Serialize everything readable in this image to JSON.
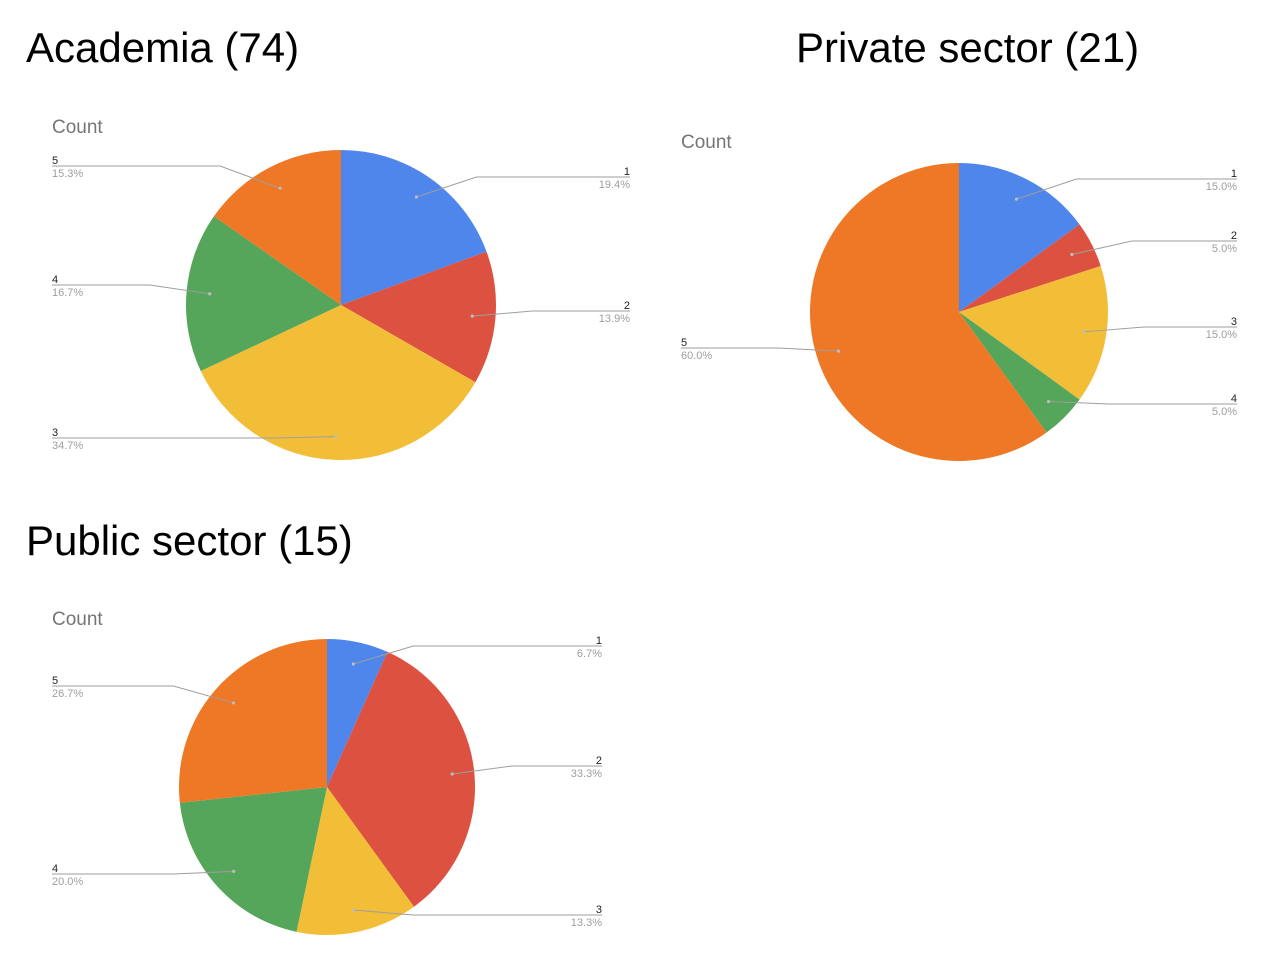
{
  "colors": {
    "1": "#4f86ec",
    "2": "#dd5141",
    "3": "#f3be37",
    "4": "#55a65a",
    "5": "#ef7826",
    "leader": "#9e9e9e"
  },
  "chart_data": [
    {
      "type": "pie",
      "title": "Academia (74)",
      "subtitle": "Count",
      "categories": [
        "1",
        "2",
        "3",
        "4",
        "5"
      ],
      "values": [
        19.4,
        13.9,
        34.7,
        16.7,
        15.3
      ],
      "labels": [
        "19.4%",
        "13.9%",
        "34.7%",
        "16.7%",
        "15.3%"
      ]
    },
    {
      "type": "pie",
      "title": "Private sector (21)",
      "subtitle": "Count",
      "categories": [
        "1",
        "2",
        "3",
        "4",
        "5"
      ],
      "values": [
        15.0,
        5.0,
        15.0,
        5.0,
        60.0
      ],
      "labels": [
        "15.0%",
        "5.0%",
        "15.0%",
        "5.0%",
        "60.0%"
      ]
    },
    {
      "type": "pie",
      "title": "Public sector (15)",
      "subtitle": "Count",
      "categories": [
        "1",
        "2",
        "3",
        "4",
        "5"
      ],
      "values": [
        6.7,
        33.3,
        13.3,
        20.0,
        26.7
      ],
      "labels": [
        "6.7%",
        "33.3%",
        "13.3%",
        "20.0%",
        "26.7%"
      ]
    }
  ]
}
